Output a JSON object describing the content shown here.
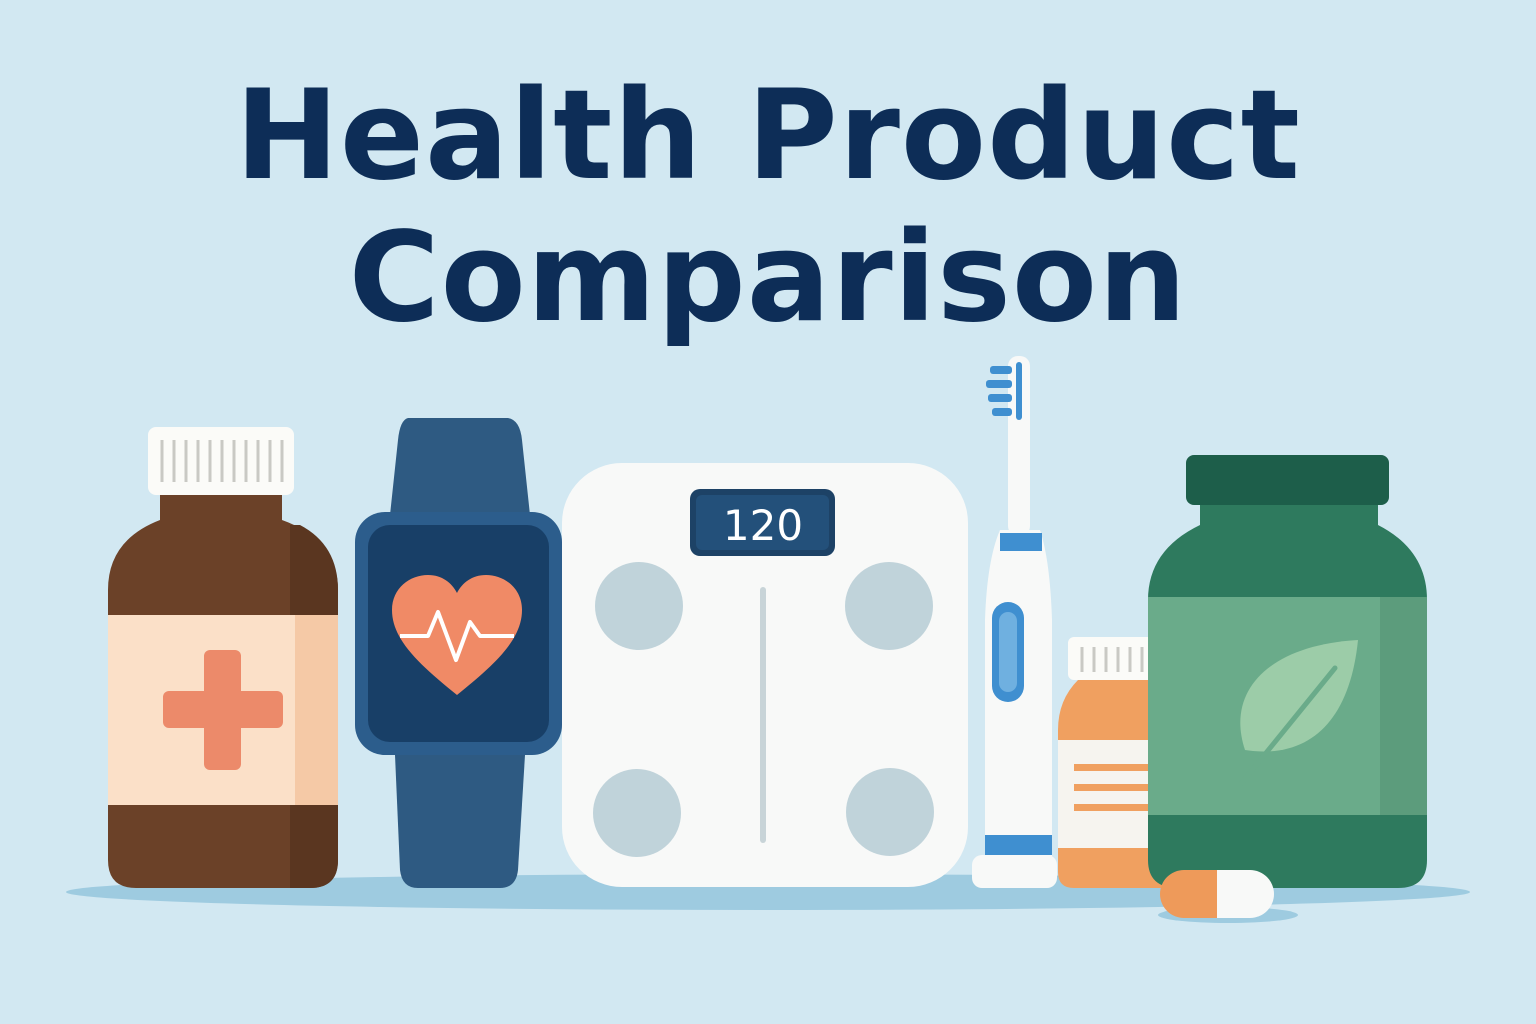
{
  "title": {
    "line1": "Health Product",
    "line2": "Comparison"
  },
  "scale": {
    "display_value": "120"
  },
  "colors": {
    "background": "#d2e8f2",
    "title": "#0d2d57",
    "brown_bottle": "#6b4128",
    "watch": "#2c5d8c",
    "heart": "#f08a66",
    "jar": "#2e7a5e",
    "orange_bottle": "#f0a060",
    "toothbrush_accent": "#3f8fd0"
  },
  "products": [
    "medicine-bottle",
    "smartwatch",
    "bathroom-scale",
    "electric-toothbrush",
    "pill-bottle",
    "supplement-jar",
    "capsule"
  ]
}
